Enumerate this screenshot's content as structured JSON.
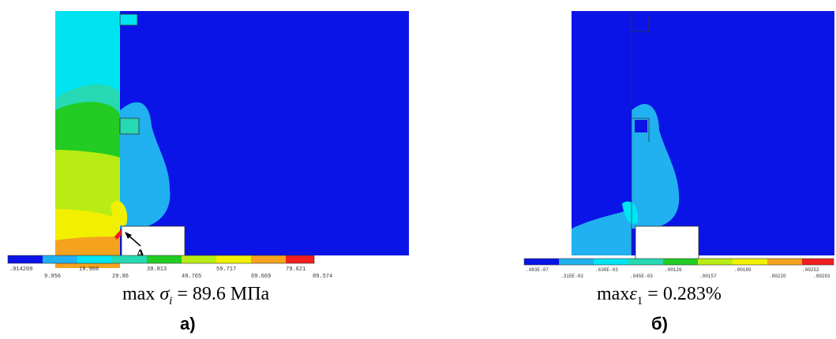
{
  "panel_a": {
    "marker": "A",
    "colorbar_labels_top": [
      ".014209",
      "19.908",
      "39.813",
      "59.717",
      "79.621"
    ],
    "colorbar_labels_bottom": [
      "9.956",
      "29.86",
      "49.765",
      "69.669",
      "89.574"
    ],
    "formula_prefix": "max",
    "formula_symbol": "σ",
    "formula_subscript": "i",
    "formula_value": "= 89.6 МПа",
    "caption": "а)"
  },
  "panel_b": {
    "colorbar_labels_top": [
      ".483E-07",
      ".630E-03",
      ".00126",
      ".00189",
      ".00252"
    ],
    "colorbar_labels_bottom": [
      ".315E-03",
      ".945E-03",
      ".00157",
      ".00220",
      ".00283"
    ],
    "formula_prefix": "max",
    "formula_symbol": "ε",
    "formula_subscript": "1",
    "formula_value": "= 0.283%",
    "caption": "б)"
  },
  "colors": {
    "background_blue": "#0a14e6",
    "light_blue": "#21b0f0",
    "cyan": "#00e4f2",
    "teal": "#26d9b3",
    "green": "#22cc22",
    "yellow_green": "#b8ec14",
    "yellow": "#f0f000",
    "orange": "#f5a31e",
    "red": "#f01e1e"
  }
}
